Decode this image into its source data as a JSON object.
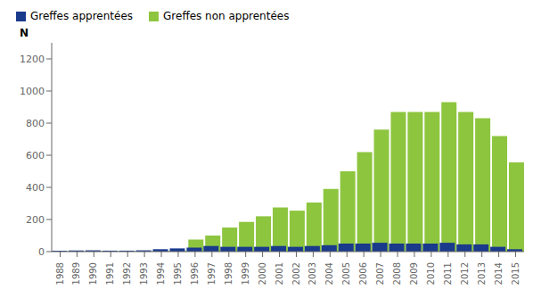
{
  "chart_data": {
    "type": "bar",
    "ylabel": "N",
    "categories": [
      "1988",
      "1989",
      "1990",
      "1991",
      "1992",
      "1993",
      "1994",
      "1995",
      "1996",
      "1997",
      "1998",
      "1999",
      "2000",
      "2001",
      "2002",
      "2003",
      "2004",
      "2005",
      "2006",
      "2007",
      "2008",
      "2009",
      "2010",
      "2011",
      "2012",
      "2013",
      "2014",
      "2015"
    ],
    "series": [
      {
        "name": "Greffes apprentées",
        "color": "#1a3a8c",
        "values": [
          5,
          7,
          8,
          6,
          6,
          8,
          15,
          20,
          25,
          35,
          30,
          30,
          30,
          35,
          30,
          35,
          40,
          50,
          50,
          55,
          50,
          50,
          50,
          55,
          45,
          45,
          30,
          15
        ]
      },
      {
        "name": "Greffes non apprentées",
        "color": "#8dc53f",
        "values": [
          2,
          2,
          2,
          2,
          2,
          2,
          3,
          5,
          75,
          100,
          150,
          185,
          220,
          275,
          255,
          305,
          390,
          500,
          620,
          760,
          870,
          870,
          870,
          930,
          870,
          830,
          720,
          555
        ]
      }
    ],
    "ylim": [
      0,
      1300
    ],
    "yticks": [
      0,
      200,
      400,
      600,
      800,
      1000,
      1200
    ],
    "grid": false,
    "legend": "upper left"
  }
}
